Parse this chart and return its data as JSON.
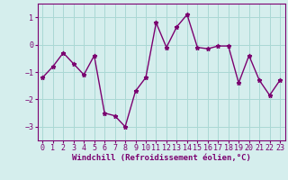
{
  "x": [
    0,
    1,
    2,
    3,
    4,
    5,
    6,
    7,
    8,
    9,
    10,
    11,
    12,
    13,
    14,
    15,
    16,
    17,
    18,
    19,
    20,
    21,
    22,
    23
  ],
  "y": [
    -1.2,
    -0.8,
    -0.3,
    -0.7,
    -1.1,
    -0.4,
    -2.5,
    -2.6,
    -3.0,
    -1.7,
    -1.2,
    0.8,
    -0.1,
    0.65,
    1.1,
    -0.1,
    -0.15,
    -0.05,
    -0.05,
    -1.4,
    -0.4,
    -1.3,
    -1.85,
    -1.3
  ],
  "line_color": "#7B0070",
  "marker": "*",
  "bg_color": "#d5eeed",
  "grid_color": "#aad8d4",
  "xlabel": "Windchill (Refroidissement éolien,°C)",
  "xlim": [
    -0.5,
    23.5
  ],
  "ylim": [
    -3.5,
    1.5
  ],
  "yticks": [
    -3,
    -2,
    -1,
    0,
    1
  ],
  "xticks": [
    0,
    1,
    2,
    3,
    4,
    5,
    6,
    7,
    8,
    9,
    10,
    11,
    12,
    13,
    14,
    15,
    16,
    17,
    18,
    19,
    20,
    21,
    22,
    23
  ],
  "xlabel_fontsize": 6.5,
  "tick_fontsize": 6.0,
  "line_width": 1.0,
  "marker_size": 3.5
}
